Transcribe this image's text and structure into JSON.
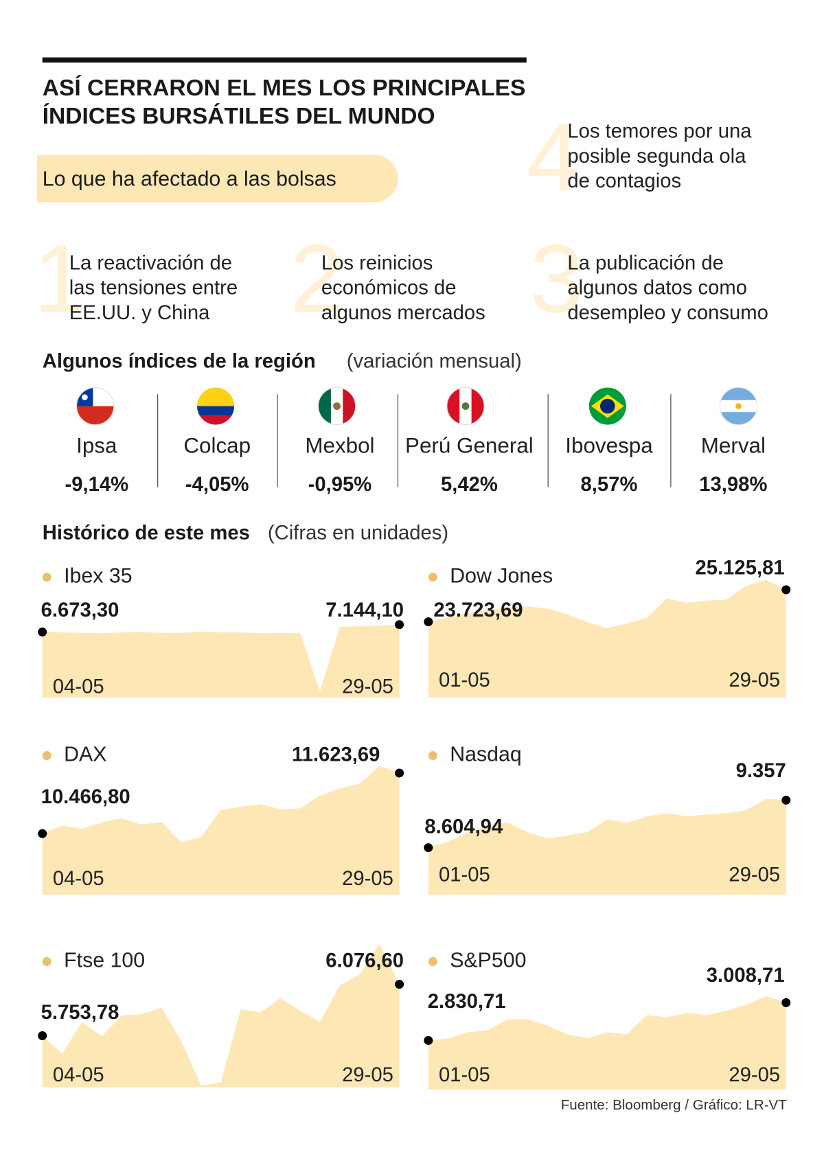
{
  "header": {
    "title": [
      "ASÍ CERRARON EL MES LOS PRINCIPALES",
      "ÍNDICES BURSÁTILES DEL MUNDO"
    ],
    "subtitle": "Lo que ha afectado a las bolsas"
  },
  "factors": [
    {
      "number": "1",
      "lines": [
        "La reactivación de",
        "las tensiones entre",
        "EE.UU. y China"
      ]
    },
    {
      "number": "2",
      "lines": [
        "Los reinicios",
        "económicos de",
        "algunos mercados"
      ]
    },
    {
      "number": "3",
      "lines": [
        "La publicación de",
        "algunos datos como",
        "desempleo y consumo"
      ]
    },
    {
      "number": "4",
      "lines": [
        "Los temores por una",
        "posible segunda ola",
        "de contagios"
      ]
    }
  ],
  "regional": {
    "title": "Algunos índices de la región",
    "note": "(variación mensual)",
    "indices": [
      {
        "name": "Ipsa",
        "change": "-9,14%"
      },
      {
        "name": "Colcap",
        "change": "-4,05%"
      },
      {
        "name": "Mexbol",
        "change": "-0,95%"
      },
      {
        "name": "Perú General",
        "change": "5,42%"
      },
      {
        "name": "Ibovespa",
        "change": "8,57%"
      },
      {
        "name": "Merval",
        "change": "13,98%"
      }
    ]
  },
  "history": {
    "title": "Histórico de este mes",
    "note": "(Cifras en unidades)"
  },
  "chart_data": [
    {
      "type": "area",
      "title": "Ibex 35",
      "color": "#fde7b5",
      "legend_color": "#e8c170",
      "categories": [
        "04-05",
        null,
        null,
        null,
        null,
        null,
        null,
        null,
        null,
        null,
        null,
        null,
        null,
        null,
        null,
        null,
        null,
        null,
        "29-05"
      ],
      "values": [
        6673.3,
        6650,
        6620,
        6600,
        6640,
        6660,
        6620,
        6610,
        6700,
        6650,
        6640,
        6600,
        6610,
        6600,
        2900,
        7000,
        7050,
        7080,
        7144.1
      ],
      "value_labels": [
        "6.673,30",
        null,
        null,
        null,
        null,
        null,
        null,
        null,
        null,
        null,
        null,
        null,
        null,
        null,
        null,
        null,
        null,
        null,
        "7.144,10"
      ],
      "ylim": [
        2500,
        9500
      ]
    },
    {
      "type": "area",
      "title": "Dow Jones",
      "color": "#fde7b5",
      "legend_color": "#e8c170",
      "categories": [
        "01-05",
        null,
        null,
        null,
        null,
        null,
        null,
        null,
        null,
        null,
        null,
        null,
        null,
        null,
        null,
        null,
        null,
        null,
        "29-05"
      ],
      "values": [
        23723.69,
        23900,
        24100,
        24250,
        24350,
        24400,
        24300,
        24050,
        23700,
        23450,
        23650,
        23900,
        24750,
        24550,
        24650,
        24700,
        25300,
        25550,
        25125.81
      ],
      "value_labels": [
        "23.723,69",
        null,
        null,
        null,
        null,
        null,
        null,
        null,
        null,
        null,
        null,
        null,
        null,
        null,
        null,
        null,
        null,
        null,
        "25.125,81"
      ],
      "ylim": [
        20400,
        26200
      ]
    },
    {
      "type": "area",
      "title": "DAX",
      "color": "#fde7b5",
      "legend_color": "#e8c170",
      "categories": [
        "04-05",
        null,
        null,
        null,
        null,
        null,
        null,
        null,
        null,
        null,
        null,
        null,
        null,
        null,
        null,
        null,
        null,
        null,
        "29-05"
      ],
      "values": [
        10466.8,
        10620,
        10560,
        10680,
        10760,
        10640,
        10690,
        10300,
        10400,
        10920,
        10980,
        11030,
        10930,
        10950,
        11190,
        11330,
        11420,
        11760,
        11623.69
      ],
      "value_labels": [
        "10.466,80",
        null,
        null,
        null,
        null,
        null,
        null,
        null,
        null,
        null,
        null,
        null,
        null,
        null,
        null,
        null,
        null,
        null,
        "11.623,69"
      ],
      "ylim": [
        9300,
        11900
      ]
    },
    {
      "type": "area",
      "title": "Nasdaq",
      "color": "#fde7b5",
      "legend_color": "#e8c170",
      "categories": [
        "01-05",
        null,
        null,
        null,
        null,
        null,
        null,
        null,
        null,
        null,
        null,
        null,
        null,
        null,
        null,
        null,
        null,
        null,
        "29-05"
      ],
      "values": [
        8604.94,
        8700,
        8850,
        8950,
        9000,
        8850,
        8750,
        8800,
        8850,
        9050,
        9000,
        9100,
        9150,
        9100,
        9130,
        9150,
        9200,
        9380,
        9357
      ],
      "value_labels": [
        "8.604,94",
        null,
        null,
        null,
        null,
        null,
        null,
        null,
        null,
        null,
        null,
        null,
        null,
        null,
        null,
        null,
        null,
        null,
        "9.357"
      ],
      "ylim": [
        7860,
        9780
      ]
    },
    {
      "type": "area",
      "title": "Ftse 100",
      "color": "#fde7b5",
      "legend_color": "#e8c170",
      "categories": [
        "04-05",
        null,
        null,
        null,
        null,
        null,
        null,
        null,
        null,
        null,
        null,
        null,
        null,
        null,
        null,
        null,
        null,
        null,
        "29-05"
      ],
      "values": [
        5753.78,
        5640,
        5840,
        5750,
        5880,
        5890,
        5930,
        5720,
        5440,
        5460,
        5920,
        5900,
        5990,
        5910,
        5840,
        6070,
        6140,
        6330,
        6076.6
      ],
      "value_labels": [
        "5.753,78",
        null,
        null,
        null,
        null,
        null,
        null,
        null,
        null,
        null,
        null,
        null,
        null,
        null,
        null,
        null,
        null,
        null,
        "6.076,60"
      ],
      "ylim": [
        5430,
        6350
      ]
    },
    {
      "type": "area",
      "title": "S&P500",
      "color": "#fde7b5",
      "legend_color": "#e8c170",
      "categories": [
        "01-05",
        null,
        null,
        null,
        null,
        null,
        null,
        null,
        null,
        null,
        null,
        null,
        null,
        null,
        null,
        null,
        null,
        null,
        "29-05"
      ],
      "values": [
        2830.71,
        2840,
        2870,
        2880,
        2930,
        2930,
        2900,
        2860,
        2840,
        2870,
        2860,
        2950,
        2940,
        2960,
        2950,
        2970,
        3000,
        3040,
        3008.71
      ],
      "value_labels": [
        "2.830,71",
        null,
        null,
        null,
        null,
        null,
        null,
        null,
        null,
        null,
        null,
        null,
        null,
        null,
        null,
        null,
        null,
        null,
        "3.008,71"
      ],
      "ylim": [
        2600,
        3090
      ]
    }
  ],
  "source": "Fuente: Bloomberg / Gráfico: LR-VT"
}
